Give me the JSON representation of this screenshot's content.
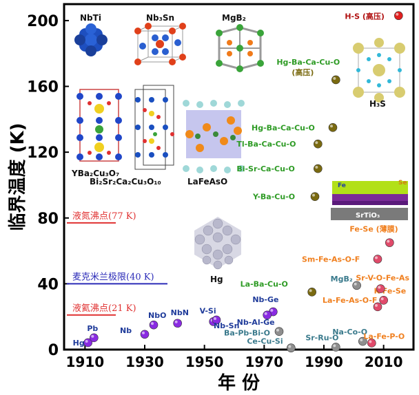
{
  "chart_data": {
    "type": "scatter",
    "xlabel": "年 份",
    "ylabel": "临界温度 (K)",
    "xlim": [
      1903,
      2020
    ],
    "ylim": [
      0,
      210
    ],
    "x_ticks": [
      1910,
      1930,
      1950,
      1970,
      1990,
      2010
    ],
    "y_ticks": [
      0,
      40,
      80,
      120,
      160,
      200
    ],
    "reference_lines": [
      {
        "label": "液氮沸点(77 K)",
        "y": 77,
        "color": "#e03030"
      },
      {
        "label": "麦克米兰极限(40 K)",
        "y": 40,
        "color": "#2b2bb8"
      },
      {
        "label": "液氦沸点(21 K)",
        "y": 21,
        "color": "#e03030"
      }
    ],
    "series": [
      {
        "color": "#8a2be2",
        "label_color": "#1f3b9a",
        "points": [
          {
            "label": "Hg",
            "x": 1911,
            "y": 4.2
          },
          {
            "label": "Pb",
            "x": 1913,
            "y": 7.2
          },
          {
            "label": "Nb",
            "x": 1930,
            "y": 9.3
          },
          {
            "label": "NbO",
            "x": 1933,
            "y": 15
          },
          {
            "label": "NbN",
            "x": 1941,
            "y": 16
          },
          {
            "label": "V-Si",
            "x": 1953,
            "y": 17
          },
          {
            "label": "Nb-Sn",
            "x": 1954,
            "y": 18
          },
          {
            "label": "Nb-Ge",
            "x": 1973,
            "y": 23
          },
          {
            "label": "Nb-Al-Ge",
            "x": 1971,
            "y": 21
          }
        ]
      },
      {
        "color": "#8e8e8e",
        "label_color": "#3a7a8c",
        "points": [
          {
            "label": "Ba-Pb-Bi-O",
            "x": 1975,
            "y": 11
          },
          {
            "label": "Ce-Cu-Si",
            "x": 1979,
            "y": 1
          },
          {
            "label": "Sr-Ru-O",
            "x": 1994,
            "y": 1.5
          },
          {
            "label": "Na-Co-O",
            "x": 2003,
            "y": 5
          },
          {
            "label": "MgB₂",
            "x": 2001,
            "y": 39
          }
        ]
      },
      {
        "color": "#7a6a10",
        "label_color": "#2e9b25",
        "points": [
          {
            "label": "La-Ba-Cu-O",
            "x": 1986,
            "y": 35
          },
          {
            "label": "Y-Ba-Cu-O",
            "x": 1987,
            "y": 93
          },
          {
            "label": "Bi-Sr-Ca-Cu-O",
            "x": 1988,
            "y": 110
          },
          {
            "label": "Tl-Ba-Ca-Cu-O",
            "x": 1988,
            "y": 125
          },
          {
            "label": "Hg-Ba-Ca-Cu-O",
            "x": 1993,
            "y": 135
          },
          {
            "label": "Hg-Ba-Ca-Cu-O (高压)",
            "x": 1994,
            "y": 164
          }
        ]
      },
      {
        "color": "#e04a6a",
        "label_color": "#f08020",
        "points": [
          {
            "label": "La-Fe-P-O",
            "x": 2006,
            "y": 4
          },
          {
            "label": "La-Fe-As-O-F",
            "x": 2008,
            "y": 26
          },
          {
            "label": "K-Fe-Se",
            "x": 2010,
            "y": 30
          },
          {
            "label": "Sr-V-O-Fe-As",
            "x": 2009,
            "y": 37
          },
          {
            "label": "Sm-Fe-As-O-F",
            "x": 2008,
            "y": 55
          },
          {
            "label": "Fe-Se (薄膜)",
            "x": 2012,
            "y": 65
          }
        ]
      },
      {
        "color": "#e02020",
        "label_color": "#b01010",
        "points": [
          {
            "label": "H-S (高压)",
            "x": 2015,
            "y": 203
          }
        ]
      }
    ],
    "structure_captions": [
      "NbTi",
      "Nb₃Sn",
      "MgB₂",
      "YBa₂Cu₃O₇",
      "Bi₂Sr₂Ca₂Cu₃O₁₀",
      "LaFeAsO",
      "Hg",
      "H₃S",
      "SrTiO₃",
      "Fe",
      "Se"
    ]
  },
  "colors": {
    "axis": "#000000",
    "bg": "#ffffff"
  }
}
